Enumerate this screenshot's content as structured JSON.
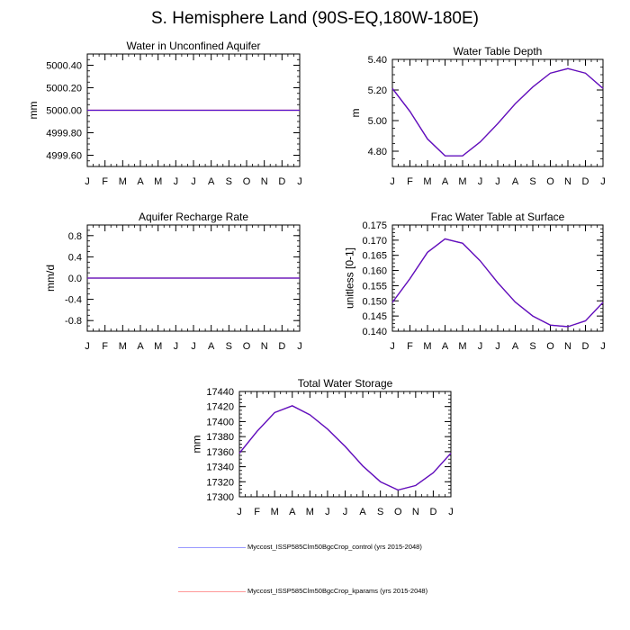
{
  "title": "S. Hemisphere Land (90S-EQ,180W-180E)",
  "colors": {
    "control": "#3333ff",
    "kparams": "#ff3333",
    "mixed": "#5511cc",
    "axis": "#000000"
  },
  "legend": [
    {
      "label": "Myccost_ISSP585Clm50BgcCrop_control (yrs 2015-2048)",
      "color": "#9999ff"
    },
    {
      "label": "Myccost_ISSP585Clm50BgcCrop_kparams (yrs 2015-2048)",
      "color": "#ff9999"
    }
  ],
  "chart_data": [
    {
      "id": "water-unconfined-aquifer",
      "type": "line",
      "title": "Water in Unconfined Aquifer",
      "ylabel": "mm",
      "categories": [
        "J",
        "F",
        "M",
        "A",
        "M",
        "J",
        "J",
        "A",
        "S",
        "O",
        "N",
        "D",
        "J"
      ],
      "ylim": [
        4999.5,
        5000.5
      ],
      "yticks": [
        4999.6,
        4999.8,
        5000.0,
        5000.2,
        5000.4
      ],
      "ytick_labels": [
        "4999.60",
        "4999.80",
        "5000.00",
        "5000.20",
        "5000.40"
      ],
      "series": [
        {
          "values": [
            5000,
            5000,
            5000,
            5000,
            5000,
            5000,
            5000,
            5000,
            5000,
            5000,
            5000,
            5000,
            5000
          ]
        },
        {
          "values": [
            5000,
            5000,
            5000,
            5000,
            5000,
            5000,
            5000,
            5000,
            5000,
            5000,
            5000,
            5000,
            5000
          ]
        }
      ]
    },
    {
      "id": "water-table-depth",
      "type": "line",
      "title": "Water Table Depth",
      "ylabel": "m",
      "categories": [
        "J",
        "F",
        "M",
        "A",
        "M",
        "J",
        "J",
        "A",
        "S",
        "O",
        "N",
        "D",
        "J"
      ],
      "ylim": [
        4.7,
        5.4
      ],
      "yticks": [
        4.8,
        5.0,
        5.2,
        5.4
      ],
      "ytick_labels": [
        "4.80",
        "5.00",
        "5.20",
        "5.40"
      ],
      "series": [
        {
          "values": [
            5.21,
            5.06,
            4.88,
            4.77,
            4.77,
            4.86,
            4.98,
            5.11,
            5.22,
            5.31,
            5.34,
            5.31,
            5.21
          ]
        },
        {
          "values": [
            5.21,
            5.06,
            4.88,
            4.77,
            4.77,
            4.86,
            4.98,
            5.11,
            5.22,
            5.31,
            5.34,
            5.31,
            5.21
          ]
        }
      ]
    },
    {
      "id": "aquifer-recharge-rate",
      "type": "line",
      "title": "Aquifer Recharge Rate",
      "ylabel": "mm/d",
      "categories": [
        "J",
        "F",
        "M",
        "A",
        "M",
        "J",
        "J",
        "A",
        "S",
        "O",
        "N",
        "D",
        "J"
      ],
      "ylim": [
        -1.0,
        1.0
      ],
      "yticks": [
        -0.8,
        -0.4,
        0.0,
        0.4,
        0.8
      ],
      "ytick_labels": [
        "-0.8",
        "-0.4",
        "0.0",
        "0.4",
        "0.8"
      ],
      "series": [
        {
          "values": [
            0,
            0,
            0,
            0,
            0,
            0,
            0,
            0,
            0,
            0,
            0,
            0,
            0
          ]
        },
        {
          "values": [
            0,
            0,
            0,
            0,
            0,
            0,
            0,
            0,
            0,
            0,
            0,
            0,
            0
          ]
        }
      ]
    },
    {
      "id": "frac-water-table-surface",
      "type": "line",
      "title": "Frac Water Table at Surface",
      "ylabel": "unitless [0-1]",
      "categories": [
        "J",
        "F",
        "M",
        "A",
        "M",
        "J",
        "J",
        "A",
        "S",
        "O",
        "N",
        "D",
        "J"
      ],
      "ylim": [
        0.14,
        0.175
      ],
      "yticks": [
        0.14,
        0.145,
        0.15,
        0.155,
        0.16,
        0.165,
        0.17,
        0.175
      ],
      "ytick_labels": [
        "0.140",
        "0.145",
        "0.150",
        "0.155",
        "0.160",
        "0.165",
        "0.170",
        "0.175"
      ],
      "series": [
        {
          "values": [
            0.1495,
            0.1573,
            0.166,
            0.1704,
            0.169,
            0.1632,
            0.156,
            0.1496,
            0.145,
            0.142,
            0.1415,
            0.1434,
            0.1495
          ]
        },
        {
          "values": [
            0.1495,
            0.1573,
            0.166,
            0.1704,
            0.169,
            0.1632,
            0.156,
            0.1496,
            0.145,
            0.142,
            0.1415,
            0.1434,
            0.1495
          ]
        }
      ]
    },
    {
      "id": "total-water-storage",
      "type": "line",
      "title": "Total Water Storage",
      "ylabel": "mm",
      "categories": [
        "J",
        "F",
        "M",
        "A",
        "M",
        "J",
        "J",
        "A",
        "S",
        "O",
        "N",
        "D",
        "J"
      ],
      "ylim": [
        17300,
        17440
      ],
      "yticks": [
        17300,
        17320,
        17340,
        17360,
        17380,
        17400,
        17420,
        17440
      ],
      "ytick_labels": [
        "17300",
        "17320",
        "17340",
        "17360",
        "17380",
        "17400",
        "17420",
        "17440"
      ],
      "series": [
        {
          "values": [
            17358,
            17387,
            17412,
            17421,
            17409,
            17390,
            17367,
            17341,
            17320,
            17309,
            17315,
            17332,
            17358
          ]
        },
        {
          "values": [
            17358,
            17387,
            17412,
            17421,
            17409,
            17390,
            17367,
            17341,
            17320,
            17309,
            17315,
            17332,
            17358
          ]
        }
      ]
    }
  ]
}
